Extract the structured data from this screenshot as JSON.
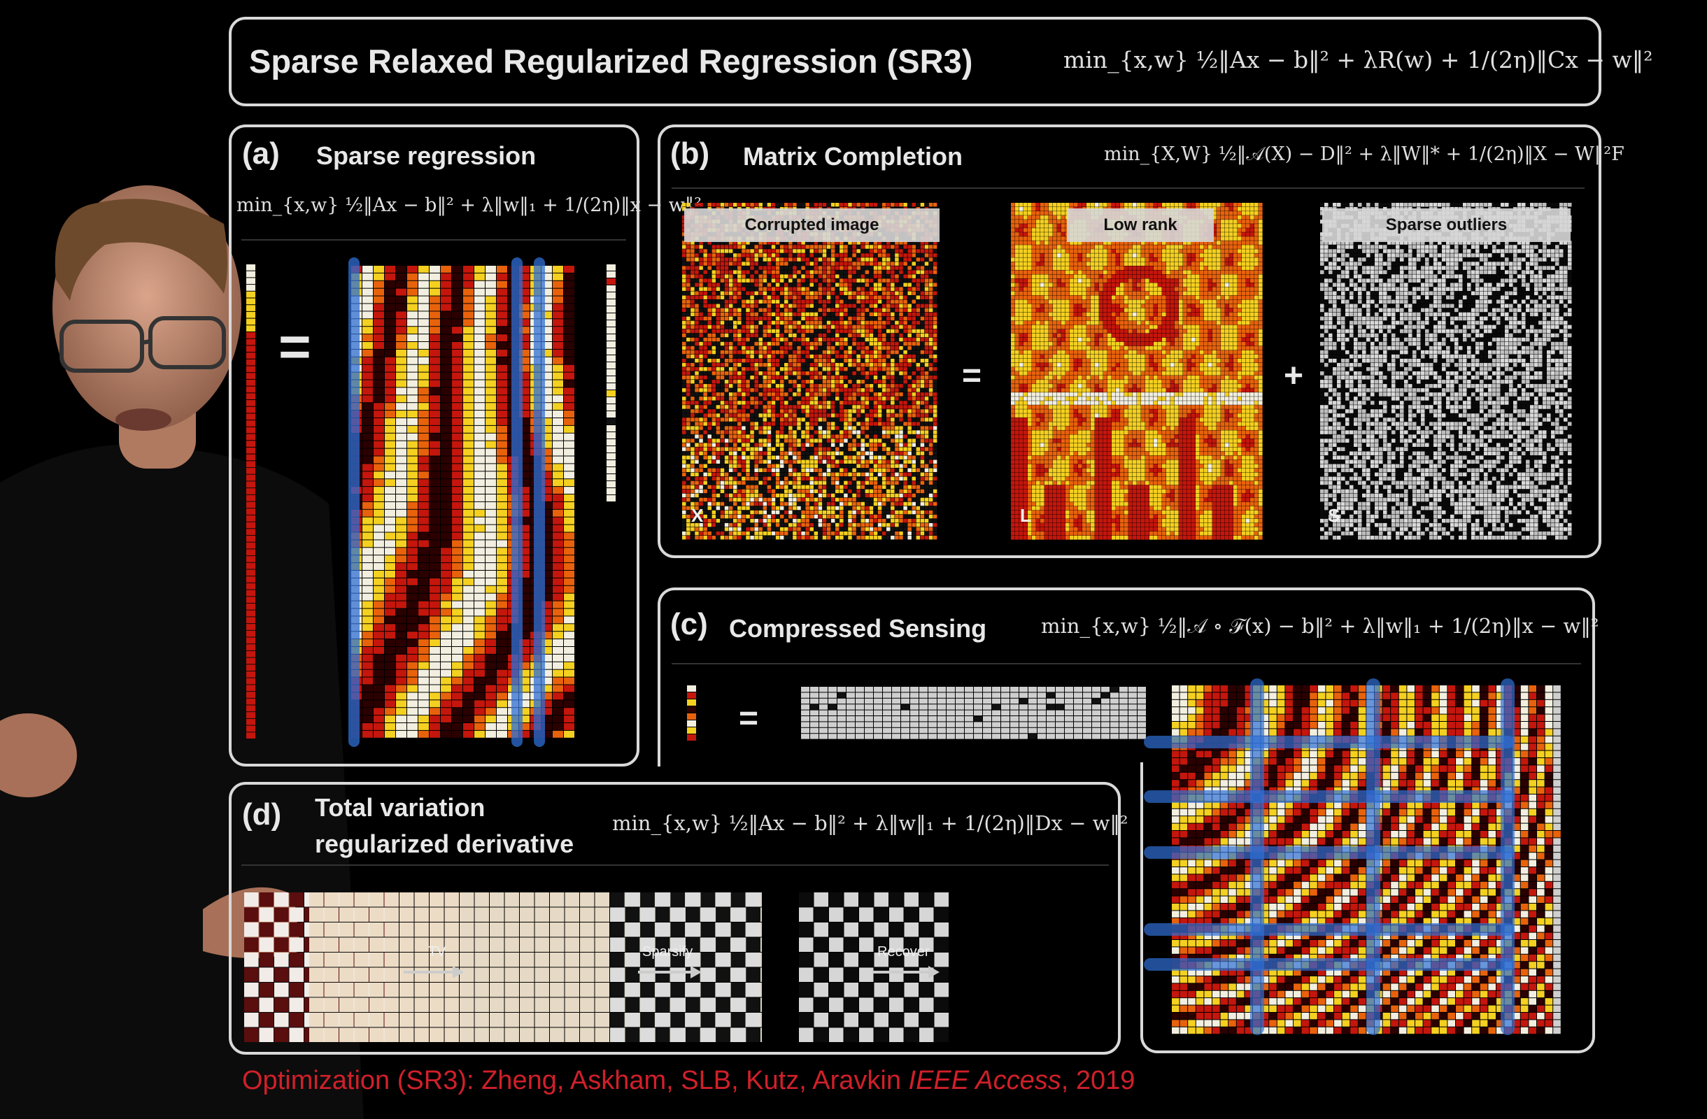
{
  "header": {
    "title": "Sparse Relaxed Regularized Regression (SR3)",
    "formula": "min_{x,w} ½‖Ax − b‖² + λR(w) + 1/(2η)‖Cx − w‖²"
  },
  "panel_a": {
    "letter": "(a)",
    "title": "Sparse regression",
    "formula": "min_{x,w} ½‖Ax − b‖² + λ‖w‖₁ + 1/(2η)‖x − w‖²",
    "equals": "="
  },
  "panel_b": {
    "letter": "(b)",
    "title": "Matrix Completion",
    "formula": "min_{X,W} ½‖𝒜(X) − D‖² + λ‖W‖* + 1/(2η)‖X − W‖²F",
    "images": [
      {
        "caption": "Corrupted image",
        "tag": "X"
      },
      {
        "caption": "Low rank",
        "tag": "L"
      },
      {
        "caption": "Sparse outliers",
        "tag": "S"
      }
    ],
    "equals": "=",
    "plus": "+"
  },
  "panel_c": {
    "letter": "(c)",
    "title": "Compressed Sensing",
    "formula": "min_{x,w} ½‖𝒜 ∘ ℱ(x) − b‖² + λ‖w‖₁ + 1/(2η)‖x − w‖²",
    "equals": "="
  },
  "panel_d": {
    "letter": "(d)",
    "title_line1": "Total variation",
    "title_line2": "regularized derivative",
    "formula": "min_{x,w} ½‖Ax − b‖² + λ‖w‖₁ + 1/(2η)‖Dx − w‖²",
    "steps": [
      "TV",
      "Sparsify",
      "Recover"
    ]
  },
  "citation": {
    "prefix": "Optimization (SR3):  Zheng, Askham, SLB, Kutz, Aravkin ",
    "journal": "IEEE Access",
    "suffix": ", 2019"
  },
  "colors": {
    "frame": "#d9d9d9",
    "citation": "#d0202a",
    "highlight": "#2f6fd6",
    "heat_dark": "#2a0000",
    "heat_red": "#c4160c",
    "heat_orange": "#e8620c",
    "heat_yellow": "#f4d020",
    "heat_white": "#f2efe0"
  }
}
